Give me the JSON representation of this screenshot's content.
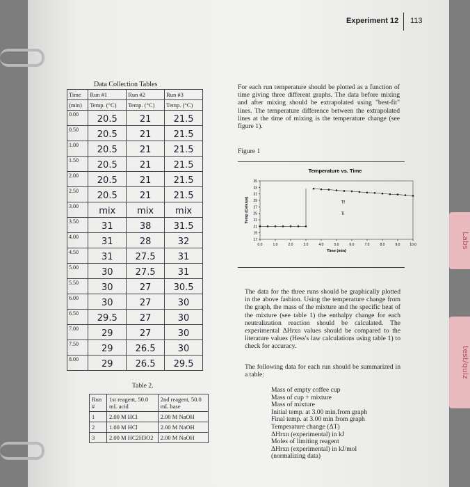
{
  "header": {
    "title": "Experiment 12",
    "page": "113"
  },
  "data_table": {
    "title": "Data Collection Tables",
    "head1": [
      "Time",
      "Run #1",
      "Run #2",
      "Run #3"
    ],
    "head2": [
      "(min)",
      "Temp. (°C)",
      "Temp. (°C)",
      "Temp. (°C)"
    ],
    "rows": [
      [
        "0.00",
        "20.5",
        "21",
        "21.5"
      ],
      [
        "0.50",
        "20.5",
        "21",
        "21.5"
      ],
      [
        "1.00",
        "20.5",
        "21",
        "21.5"
      ],
      [
        "1.50",
        "20.5",
        "21",
        "21.5"
      ],
      [
        "2.00",
        "20.5",
        "21",
        "21.5"
      ],
      [
        "2.50",
        "20.5",
        "21",
        "21.5"
      ],
      [
        "3.00",
        "mix",
        "mix",
        "mix"
      ],
      [
        "3.50",
        "31",
        "38",
        "31.5"
      ],
      [
        "4.00",
        "31",
        "28",
        "32"
      ],
      [
        "4.50",
        "31",
        "27.5",
        "31"
      ],
      [
        "5.00",
        "30",
        "27.5",
        "31"
      ],
      [
        "5.50",
        "30",
        "27",
        "30.5"
      ],
      [
        "6.00",
        "30",
        "27",
        "30"
      ],
      [
        "6.50",
        "29.5",
        "27",
        "30"
      ],
      [
        "7.00",
        "29",
        "27",
        "30"
      ],
      [
        "7.50",
        "29",
        "26.5",
        "30"
      ],
      [
        "8.00",
        "29",
        "26.5",
        "29.5"
      ]
    ]
  },
  "table2": {
    "title": "Table 2.",
    "head": [
      "Run #",
      "1st reagent, 50.0 mL acid",
      "2nd reagent, 50.0 mL base"
    ],
    "rows": [
      [
        "1",
        "2.00 M HCl",
        "2.00 M NaOH"
      ],
      [
        "2",
        "1.00 M HCl",
        "2.00 M NaOH"
      ],
      [
        "3",
        "2.00 M HC2H3O2",
        "2.00 M NaOH"
      ]
    ]
  },
  "paragraph1": "For each run temperature should be plotted as a function of time giving three different graphs. The data before mixing and after mixing should be extrapolated using \"best-fit\" lines. The temperature difference between the extrapolated lines at the time of mixing is the temperature change (see figure 1).",
  "figure_label": "Figure 1",
  "figure": {
    "title": "Temperature vs. Time",
    "xlabel": "Time (min)",
    "ylabel": "Temp (Celsius)",
    "xlim": [
      0,
      10
    ],
    "ylim": [
      17,
      35
    ],
    "xticks": [
      {
        "value": 0,
        "label": "0.0"
      },
      {
        "value": 1,
        "label": "1.0"
      },
      {
        "value": 2,
        "label": "2.0"
      },
      {
        "value": 3,
        "label": "3.0"
      },
      {
        "value": 4,
        "label": "4.0"
      },
      {
        "value": 5,
        "label": "5.0"
      },
      {
        "value": 6,
        "label": "6.0"
      },
      {
        "value": 7,
        "label": "7.0"
      },
      {
        "value": 8,
        "label": "8.0"
      },
      {
        "value": 9,
        "label": "9.0"
      },
      {
        "value": 10,
        "label": "10.0"
      }
    ],
    "yticks": [
      17,
      19,
      21,
      23,
      25,
      27,
      29,
      31,
      33,
      35
    ],
    "series": [
      {
        "x": [
          0,
          0.5,
          1,
          1.5,
          2,
          2.5,
          3
        ],
        "values": [
          21,
          21,
          21,
          21,
          21,
          21,
          21
        ]
      },
      {
        "x": [
          3.5,
          4,
          4.5,
          5,
          5.5,
          6,
          6.5,
          7,
          7.5,
          8,
          8.5,
          9,
          9.5,
          10
        ],
        "values": [
          32.6,
          32.4,
          32.3,
          32.1,
          31.9,
          31.8,
          31.6,
          31.4,
          31.3,
          31.1,
          30.9,
          30.8,
          30.6,
          30.4
        ]
      }
    ],
    "annotations": [
      "Tf",
      "Ti"
    ]
  },
  "paragraph2": "The data for the three runs should be graphically plotted in the above fashion. Using the temperature change from the graph, the mass of the mixture and the specific heat of the mixture (see table 1) the enthalpy change for each neutralization reaction should be calculated. The experimental ΔHrxn values should be compared to the literature values (Hess's law calculations using table 1) to check for accuracy.",
  "paragraph3": "The following data for each run should be summarized in a table:",
  "summary_list": [
    "Mass of empty coffee cup",
    "Mass of cup + mixture",
    "Mass of mixture",
    "Initial temp. at 3.00 min.from graph",
    "Final temp. at 3.00 min from graph",
    "Temperature change (ΔT)",
    "ΔHrxn (experimental) in kJ",
    "Moles of limiting reagent",
    "ΔHrxn (experimental) in kJ/mol",
    "(normalizing data)"
  ],
  "tabs": [
    "Labs",
    "test/quiz"
  ]
}
